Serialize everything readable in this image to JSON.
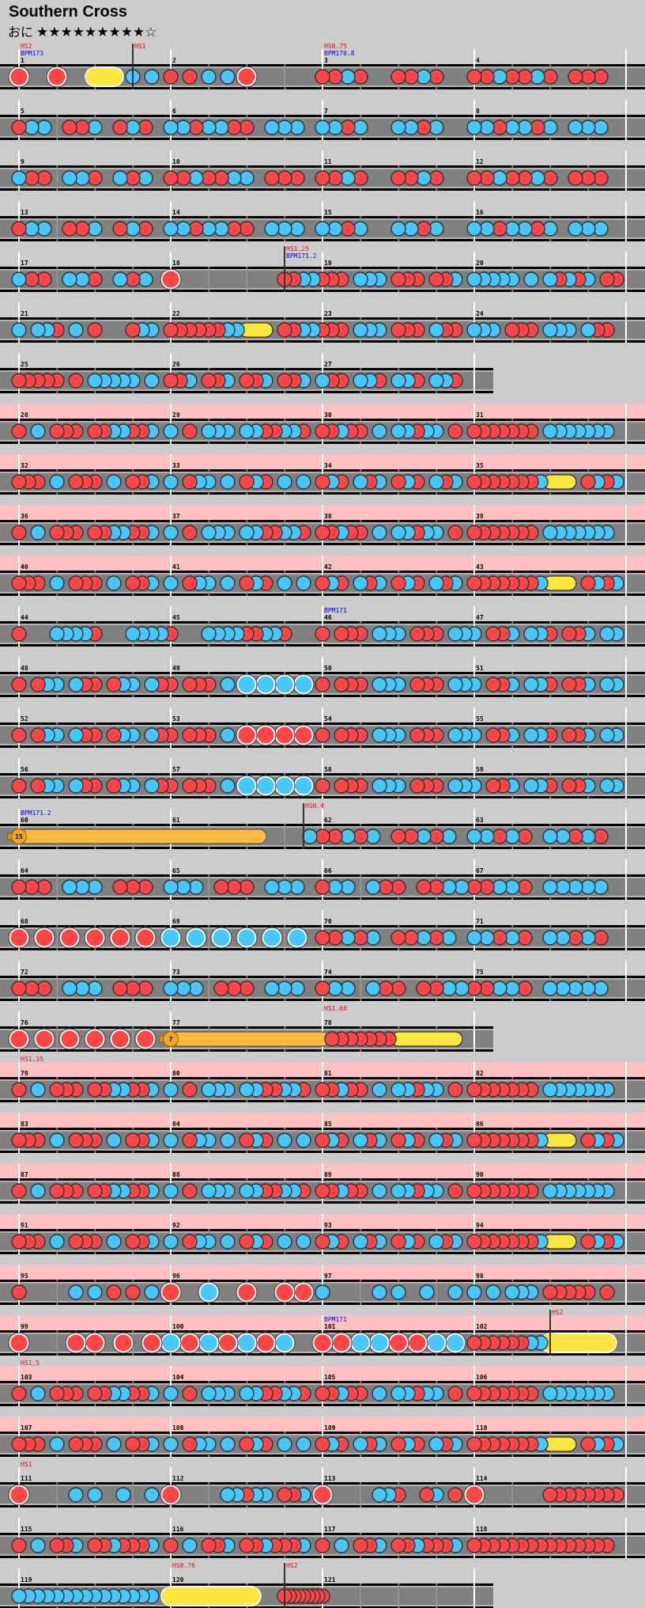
{
  "song": {
    "title": "Southern Cross",
    "difficulty_name": "おに",
    "level": 9,
    "max_level": 10,
    "stars_text": "★★★★★★★★★☆"
  },
  "colors": {
    "background": "#cccccc",
    "lane": "#808080",
    "gogo_band": "#ffc0c0",
    "don": "#ff4646",
    "ka": "#46c8ff",
    "roll": "#ffe83d",
    "balloon": "#ffbb40",
    "hs_label": "#ee0000",
    "bpm_label": "#0000ee"
  },
  "chart": {
    "note_legend": {
      "0": "empty",
      "1": "don",
      "2": "ka",
      "3": "big don",
      "4": "big ka",
      "5": "drumroll",
      "6": "big drumroll",
      "7": "balloon",
      "8": "roll end"
    },
    "lines": [
      [
        1,
        2,
        3,
        4
      ],
      [
        5,
        6,
        7,
        8
      ],
      [
        9,
        10,
        11,
        12
      ],
      [
        13,
        14,
        15,
        16
      ],
      [
        17,
        18,
        19,
        20
      ],
      [
        21,
        22,
        23,
        24
      ],
      [
        25,
        26,
        27
      ],
      [
        28,
        29,
        30,
        31
      ],
      [
        32,
        33,
        34,
        35
      ],
      [
        36,
        37,
        38,
        39
      ],
      [
        40,
        41,
        42,
        43
      ],
      [
        44,
        45,
        46,
        47
      ],
      [
        48,
        49,
        50,
        51
      ],
      [
        52,
        53,
        54,
        55
      ],
      [
        56,
        57,
        58,
        59
      ],
      [
        60,
        61,
        62,
        63
      ],
      [
        64,
        65,
        66,
        67
      ],
      [
        68,
        69,
        70,
        71
      ],
      [
        72,
        73,
        74,
        75
      ],
      [
        76,
        77,
        78
      ],
      [
        79,
        80,
        81,
        82
      ],
      [
        83,
        84,
        85,
        86
      ],
      [
        87,
        88,
        89,
        90
      ],
      [
        91,
        92,
        93,
        94
      ],
      [
        95,
        96,
        97,
        98
      ],
      [
        99,
        100,
        101,
        102
      ],
      [
        103,
        104,
        105,
        106
      ],
      [
        107,
        108,
        109,
        110
      ],
      [
        111,
        112,
        113,
        114
      ],
      [
        115,
        116,
        117,
        118
      ],
      [
        119,
        120,
        121
      ]
    ],
    "gogo_ranges": [
      [
        28,
        43
      ],
      [
        79,
        110
      ]
    ],
    "balloons": {
      "60": 15,
      "77": 7
    },
    "markers": [
      {
        "measure": 1,
        "at_16th": 0,
        "hs": "HS2",
        "bpm": "BPM173"
      },
      {
        "measure": 1,
        "at_16th": 12,
        "hs": "HS1"
      },
      {
        "measure": 3,
        "at_16th": 0,
        "hs": "HS0.75",
        "bpm": "BPM170.8"
      },
      {
        "measure": 18,
        "at_16th": 12,
        "hs": "HS1.25",
        "bpm": "BPM171.2"
      },
      {
        "measure": 46,
        "at_16th": 0,
        "bpm": "BPM171"
      },
      {
        "measure": 60,
        "at_16th": 0,
        "bpm": "BPM171.2"
      },
      {
        "measure": 61,
        "at_16th": 14,
        "hs": "HS0.4"
      },
      {
        "measure": 78,
        "at_16th": 0,
        "hs": "HS1.08"
      },
      {
        "measure": 79,
        "at_16th": 0,
        "hs": "HS1.35"
      },
      {
        "measure": 101,
        "at_16th": 0,
        "bpm": "BPM171"
      },
      {
        "measure": 102,
        "at_16th": 8,
        "hs": "HS2"
      },
      {
        "measure": 103,
        "at_16th": 0,
        "hs": "HS1.5"
      },
      {
        "measure": 111,
        "at_16th": 0,
        "hs": "HS1"
      },
      {
        "measure": 120,
        "at_16th": 0,
        "hs": "HS8.76"
      },
      {
        "measure": 120,
        "at_16th": 12,
        "hs": "HS2"
      }
    ],
    "measures": [
      "3000300060802020",
      "1010202030000000",
      "112100112100",
      "112112101110",
      "122011201210",
      "221221102220",
      "221200221200",
      "221221202220",
      "211022102120",
      "112112201110",
      "112100112100",
      "112112101110",
      "122011201210",
      "221221102220",
      "221200221200",
      "221221202220",
      "211022102120",
      "3000000000001122",
      "1110222011101120",
      "2222202021212011",
      "2022102010001220",
      "1111112250801122",
      "1110222011102110",
      "2220111022202110",
      "1111101022222020",
      "1120112011201120",
      "2110221022102210",
      "1020111011221120",
      "2010222022112210",
      "1121102022122010",
      "1111111022222220",
      "1110201110201120",
      "2012202012102020",
      "1210212012102120",
      "1111111250801212",
      "1020111011221120",
      "2010222022112210",
      "1121102022122010",
      "1111111022222220",
      "1110201110201120",
      "2012202012102020",
      "1210212012102120",
      "1111111250801212",
      "1000222210002222",
      "1000222211221000",
      "1011102220111022",
      "2011202210112022",
      "1012202110122021",
      "1011102040404040",
      "1011102220111022",
      "2011202210112022",
      "1012202110122021",
      "1011102030303030",
      "1011102220111022",
      "2011202210112022",
      "1012202110122021",
      "1011102040404040",
      "1011102220111022",
      "2011202210112022",
      "7000000000000000",
      "000000080002",
      "112120112120",
      "221210221210",
      "111022201110",
      "222011102220",
      "122021101122",
      "112210222220",
      "303030303030",
      "404040404040",
      "112120112120",
      "221210221210",
      "111022201110",
      "222011102220",
      "122021101122",
      "112210222220",
      "303030303030",
      "700000000000",
      "8111111150000080",
      "1020111011221120",
      "2010222022112210",
      "1121102022122010",
      "1111111022222220",
      "1110201110201120",
      "2012202012102020",
      "1210212012102120",
      "1111111250801212",
      "1020111011221120",
      "2010222022112210",
      "1121102022122010",
      "1111111022222220",
      "1110201110201120",
      "2012202012102020",
      "1210212012102120",
      "1111111250801212",
      "1000002020101020",
      "3000400030003030",
      "2000002020020020",
      "2020222011111010",
      "3000003030030030",
      "4030403040304000",
      "3030404030304040",
      "1111112260000080",
      "1020111011221120",
      "2010222022112210",
      "1121102022122010",
      "1111111022222220",
      "1110201110201120",
      "2012202012102020",
      "1210212012102120",
      "1111111250801212",
      "3000002020020020",
      "3000002212201120",
      "3000002210012010",
      "3000000011111111",
      "1020112011211120",
      "1020112011211120",
      "1020112011211120",
      "1111111111111110",
      "2222222222222220",
      "60000000000000000800000011111111",
      "1000000000000000"
    ]
  }
}
